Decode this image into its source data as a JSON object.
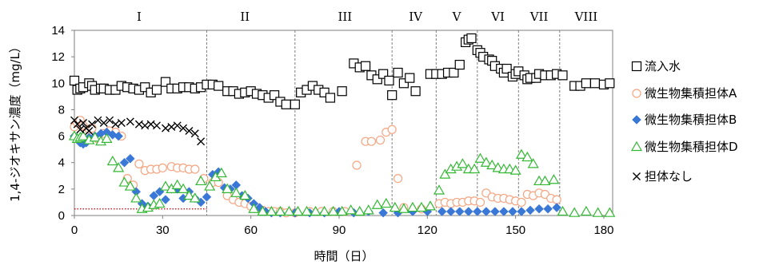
{
  "chart_data": {
    "type": "scatter",
    "title": "",
    "xlabel": "時間（日）",
    "ylabel": "1,4-ジオキサン濃度（mg/L）",
    "xlim": [
      0,
      183
    ],
    "ylim": [
      0,
      14
    ],
    "xticks": [
      0,
      30,
      60,
      90,
      120,
      150,
      180
    ],
    "yticks": [
      0,
      2,
      4,
      6,
      8,
      10,
      12,
      14
    ],
    "grid": false,
    "legend_position": "right",
    "reference_line": {
      "y": 0.5,
      "color": "#c00000",
      "style": "dotted"
    },
    "periods": {
      "labels": [
        "I",
        "II",
        "III",
        "IV",
        "V",
        "VI",
        "VII",
        "VIII"
      ],
      "centers": [
        22,
        58,
        92,
        116,
        130,
        144,
        158,
        174
      ],
      "boundaries": [
        45,
        75,
        108,
        123,
        137,
        151,
        165
      ]
    },
    "series": [
      {
        "name": "流入水",
        "marker": "square",
        "color": "#000000",
        "x": [
          0,
          1,
          2,
          3,
          5,
          6,
          7,
          9,
          10,
          12,
          14,
          16,
          18,
          20,
          22,
          24,
          26,
          28,
          31,
          33,
          35,
          37,
          39,
          41,
          43,
          45,
          47,
          49,
          52,
          54,
          56,
          58,
          60,
          62,
          64,
          66,
          68,
          70,
          72,
          75,
          77,
          79,
          81,
          83,
          85,
          87,
          91,
          95,
          97,
          99,
          101,
          103,
          105,
          107,
          108,
          110,
          112,
          114,
          116,
          121,
          123,
          125,
          127,
          129,
          131,
          133,
          134,
          135,
          137,
          138,
          139,
          141,
          142,
          143,
          145,
          146,
          147,
          149,
          150,
          151,
          153,
          154,
          155,
          157,
          158,
          160,
          162,
          164,
          166,
          170,
          172,
          174,
          177,
          180,
          182
        ],
        "y": [
          10.2,
          9.5,
          9.6,
          9.7,
          10.0,
          9.8,
          9.5,
          9.6,
          9.6,
          9.5,
          9.5,
          9.8,
          9.7,
          9.6,
          9.5,
          9.7,
          9.3,
          9.5,
          10.1,
          9.6,
          9.6,
          9.7,
          9.7,
          9.6,
          9.7,
          9.9,
          9.9,
          9.8,
          9.4,
          9.4,
          9.2,
          9.3,
          9.4,
          9.2,
          9.1,
          8.9,
          9.1,
          8.6,
          8.4,
          8.4,
          9.3,
          9.5,
          9.8,
          9.5,
          9.3,
          8.9,
          9.4,
          11.5,
          11.2,
          11.3,
          10.6,
          10.3,
          10.7,
          10.2,
          9.1,
          10.8,
          10.0,
          10.4,
          9.4,
          10.7,
          10.7,
          10.7,
          10.8,
          10.8,
          11.4,
          13.1,
          13.3,
          13.4,
          12.5,
          12.3,
          12.0,
          11.8,
          11.7,
          11.3,
          11.1,
          10.8,
          11.1,
          10.5,
          10.7,
          10.9,
          10.6,
          10.3,
          10.4,
          10.4,
          10.7,
          10.6,
          10.6,
          10.7,
          10.6,
          9.8,
          9.8,
          10.0,
          10.0,
          9.9,
          10.0
        ]
      },
      {
        "name": "微生物集積担体A",
        "marker": "circle",
        "color": "#f4a582",
        "x": [
          0,
          1,
          2,
          3,
          4,
          5,
          6,
          8,
          10,
          12,
          14,
          16,
          18,
          20,
          22,
          24,
          26,
          28,
          30,
          33,
          35,
          37,
          39,
          41,
          44,
          47,
          49,
          52,
          54,
          56,
          58,
          60,
          62,
          64,
          66,
          68,
          70,
          72,
          75,
          80,
          84,
          88,
          92,
          96,
          99,
          101,
          104,
          106,
          108,
          110,
          112,
          118,
          124,
          126,
          128,
          130,
          132,
          134,
          136,
          138,
          140,
          142,
          144,
          146,
          148,
          150,
          152,
          154,
          156,
          158,
          160,
          162,
          164
        ],
        "y": [
          6.7,
          7.0,
          7.2,
          6.8,
          6.3,
          6.5,
          6.6,
          5.8,
          6.2,
          6.4,
          6.3,
          6.0,
          2.8,
          2.3,
          3.9,
          3.4,
          3.5,
          3.5,
          3.6,
          3.7,
          3.6,
          3.6,
          3.5,
          3.5,
          2.8,
          2.5,
          2.5,
          1.5,
          1.2,
          1.0,
          0.9,
          0.7,
          0.6,
          0.4,
          0.3,
          0.3,
          0.3,
          0.2,
          0.2,
          0.3,
          0.3,
          0.3,
          0.3,
          3.8,
          5.6,
          5.6,
          5.7,
          6.3,
          6.5,
          2.8,
          0.6,
          0.5,
          0.9,
          1.0,
          0.9,
          1.0,
          1.0,
          1.1,
          1.1,
          1.0,
          1.7,
          1.4,
          1.3,
          1.3,
          1.2,
          1.1,
          1.0,
          1.6,
          1.5,
          1.7,
          1.6,
          1.3,
          1.2
        ]
      },
      {
        "name": "微生物集積担体B",
        "marker": "diamond",
        "color": "#3a78d8",
        "x": [
          0,
          1,
          2,
          3,
          4,
          5,
          7,
          9,
          11,
          13,
          15,
          17,
          19,
          21,
          23,
          25,
          27,
          29,
          31,
          33,
          35,
          37,
          39,
          41,
          43,
          45,
          47,
          49,
          51,
          53,
          55,
          57,
          59,
          61,
          63,
          65,
          67,
          70,
          75,
          80,
          85,
          90,
          95,
          100,
          105,
          110,
          115,
          120,
          125,
          128,
          131,
          134,
          137,
          140,
          143,
          146,
          149,
          152,
          155,
          158,
          161,
          164
        ],
        "y": [
          6.0,
          5.8,
          5.5,
          5.4,
          5.5,
          5.9,
          6.0,
          6.2,
          6.3,
          6.1,
          6.0,
          4.0,
          4.3,
          1.8,
          0.9,
          0.7,
          1.5,
          1.8,
          1.2,
          2.0,
          2.0,
          1.3,
          1.8,
          1.3,
          1.0,
          1.4,
          3.1,
          3.3,
          2.1,
          2.0,
          2.3,
          1.5,
          1.3,
          0.9,
          0.6,
          0.3,
          0.2,
          0.2,
          0.2,
          0.2,
          0.2,
          0.3,
          0.2,
          0.3,
          0.2,
          0.2,
          0.3,
          0.3,
          0.3,
          0.3,
          0.3,
          0.3,
          0.3,
          0.3,
          0.3,
          0.3,
          0.3,
          0.3,
          0.4,
          0.5,
          0.5,
          0.6
        ]
      },
      {
        "name": "微生物集積担体D",
        "marker": "triangle",
        "color": "#33b833",
        "x": [
          0,
          1,
          2,
          3,
          5,
          7,
          9,
          11,
          13,
          15,
          17,
          19,
          21,
          23,
          25,
          27,
          29,
          31,
          33,
          35,
          37,
          39,
          41,
          43,
          46,
          48,
          50,
          52,
          55,
          58,
          61,
          64,
          67,
          70,
          73,
          76,
          79,
          82,
          85,
          88,
          91,
          94,
          97,
          100,
          103,
          106,
          109,
          112,
          115,
          118,
          121,
          124,
          126,
          128,
          130,
          132,
          134,
          136,
          138,
          140,
          142,
          144,
          146,
          148,
          150,
          152,
          154,
          156,
          158,
          160,
          163,
          166,
          170,
          174,
          178,
          182
        ],
        "y": [
          6.0,
          5.8,
          5.9,
          6.0,
          5.7,
          5.9,
          5.6,
          5.8,
          4.1,
          3.6,
          2.5,
          2.2,
          1.3,
          0.5,
          0.6,
          0.8,
          0.9,
          2.2,
          2.0,
          2.3,
          2.0,
          1.5,
          1.3,
          2.6,
          2.2,
          2.9,
          3.2,
          2.0,
          1.7,
          1.5,
          0.5,
          0.3,
          0.3,
          0.3,
          0.3,
          0.3,
          0.3,
          0.3,
          0.3,
          0.3,
          0.3,
          0.4,
          0.3,
          0.4,
          0.8,
          0.9,
          0.6,
          0.5,
          0.6,
          0.6,
          0.7,
          1.9,
          3.1,
          3.5,
          3.7,
          3.9,
          3.5,
          3.5,
          4.3,
          4.0,
          3.8,
          3.6,
          3.5,
          3.5,
          3.4,
          4.6,
          4.4,
          3.9,
          2.6,
          2.6,
          2.7,
          0.3,
          0.2,
          0.3,
          0.2,
          0.2
        ]
      },
      {
        "name": "担体なし",
        "marker": "x",
        "color": "#000000",
        "x": [
          0,
          1,
          2,
          3,
          4,
          5,
          6,
          8,
          10,
          12,
          14,
          16,
          19,
          22,
          24,
          26,
          28,
          31,
          33,
          35,
          37,
          39,
          41,
          43
        ],
        "y": [
          7.2,
          6.9,
          6.5,
          7.0,
          6.6,
          6.4,
          6.9,
          7.2,
          7.0,
          7.2,
          6.9,
          7.0,
          7.1,
          6.9,
          6.8,
          6.9,
          6.8,
          6.6,
          6.7,
          6.8,
          6.6,
          6.4,
          6.2,
          5.6
        ]
      }
    ]
  }
}
